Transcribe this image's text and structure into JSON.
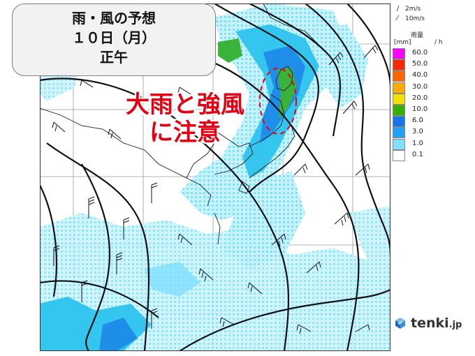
{
  "title": {
    "line1": "雨・風の予想",
    "line2": "１０日（月）",
    "line3": "正午"
  },
  "annotation": {
    "line1": "大雨と強風",
    "line2": "に注意"
  },
  "legend": {
    "wind_small": "2m/s",
    "wind_large": "10m/s",
    "rain_title": "雨量",
    "rain_unit": "[mm]",
    "rain_unit_suffix": "/ h",
    "levels": [
      {
        "label": "60.0",
        "color": "#ff00ff"
      },
      {
        "label": "50.0",
        "color": "#ff2800"
      },
      {
        "label": "40.0",
        "color": "#ff6600"
      },
      {
        "label": "30.0",
        "color": "#ffaa00"
      },
      {
        "label": "20.0",
        "color": "#f5e000"
      },
      {
        "label": "10.0",
        "color": "#33b200"
      },
      {
        "label": "6.0",
        "color": "#1976e8"
      },
      {
        "label": "3.0",
        "color": "#1fa2ff"
      },
      {
        "label": "1.0",
        "color": "#80e0ff"
      },
      {
        "label": "0.1",
        "color": "#ffffff"
      }
    ]
  },
  "brand": {
    "name": "tenki",
    "suffix": ".jp"
  },
  "colors": {
    "warning": "#e60012",
    "rain_light": "#a8ecff",
    "rain_mid": "#30c4f0",
    "rain_heavy": "#1f8ee8",
    "rain_very_heavy": "#3ab33a"
  }
}
